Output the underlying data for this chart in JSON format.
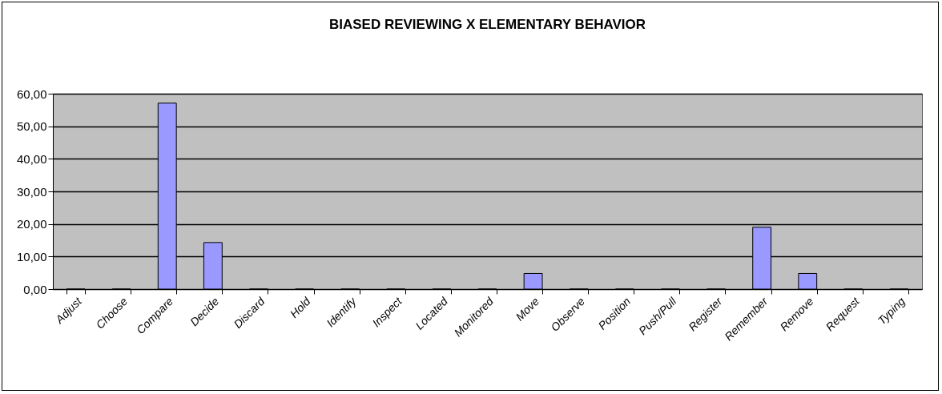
{
  "chart_data": {
    "type": "bar",
    "title": "BIASED REVIEWING X ELEMENTARY BEHAVIOR",
    "categories": [
      "Adjust",
      "Choose",
      "Compare",
      "Decide",
      "Discard",
      "Hold",
      "Identify",
      "Inspect",
      "Located",
      "Monitored",
      "Move",
      "Observe",
      "Position",
      "Push/Pull",
      "Register",
      "Remember",
      "Remove",
      "Request",
      "Typing"
    ],
    "values": [
      0,
      0,
      57.1,
      14.3,
      0,
      0,
      0,
      0,
      0,
      0,
      4.8,
      0,
      0,
      0,
      0,
      19.0,
      4.8,
      0,
      0
    ],
    "color": "#9999ff",
    "ylim": [
      0,
      60
    ],
    "yticks": [
      {
        "value": 0,
        "label": "0,00"
      },
      {
        "value": 10,
        "label": "10,00"
      },
      {
        "value": 20,
        "label": "20,00"
      },
      {
        "value": 30,
        "label": "30,00"
      },
      {
        "value": 40,
        "label": "40,00"
      },
      {
        "value": 50,
        "label": "50,00"
      },
      {
        "value": 60,
        "label": "60,00"
      }
    ],
    "grid": "y"
  }
}
